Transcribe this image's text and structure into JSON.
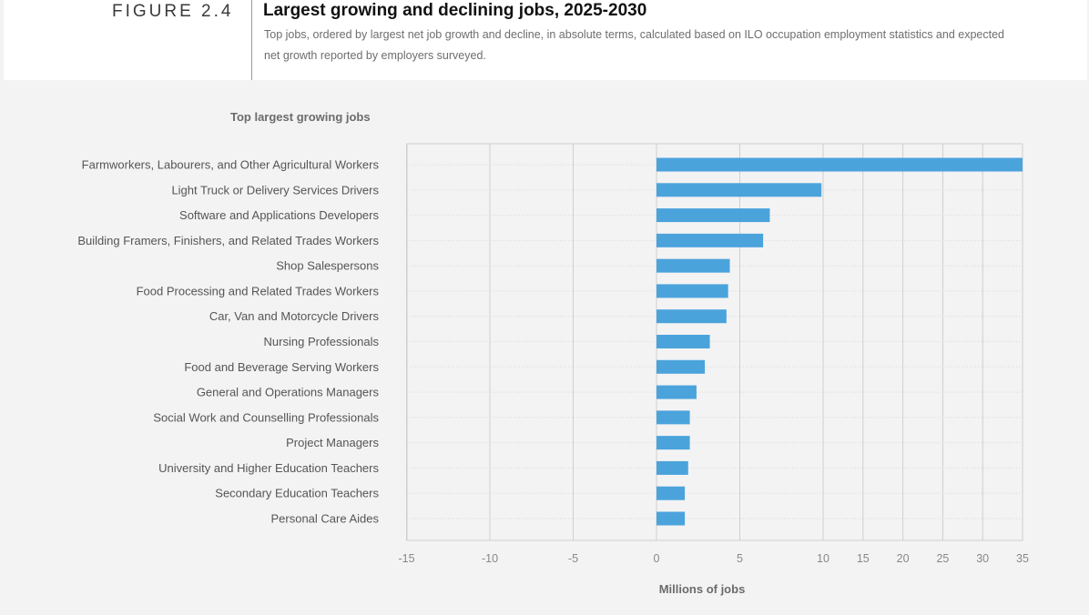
{
  "header": {
    "figure_label": "FIGURE 2.4",
    "title": "Largest growing and declining jobs, 2025-2030",
    "subtitle": "Top jobs, ordered by largest net job growth and decline, in absolute terms, calculated based on ILO occupation employment statistics and expected net growth  reported by employers surveyed."
  },
  "colors": {
    "bar": "#4ba3dc",
    "grid": "#cfcfcf",
    "plot_bg": "#f3f3f3"
  },
  "chart_data": {
    "type": "bar",
    "orientation": "horizontal",
    "section_title": "Top largest growing jobs",
    "xlabel": "Millions of jobs",
    "xlim": [
      -15,
      35
    ],
    "x_ticks": [
      "-15",
      "-10",
      "-5",
      "0",
      "5",
      "10",
      "15",
      "20",
      "25",
      "30",
      "35"
    ],
    "x_scale": "piecewise: linear -15 to 10, compressed 10 to 35",
    "grid": "vertical",
    "categories": [
      "Farmworkers, Labourers, and Other Agricultural Workers",
      "Light Truck or Delivery Services Drivers",
      "Software and Applications Developers",
      "Building Framers, Finishers, and Related Trades Workers",
      "Shop Salespersons",
      "Food Processing and Related Trades Workers",
      "Car, Van and Motorcycle Drivers",
      "Nursing Professionals",
      "Food and Beverage Serving Workers",
      "General and Operations Managers",
      "Social Work and Counselling Professionals",
      "Project Managers",
      "University and Higher Education Teachers",
      "Secondary Education Teachers",
      "Personal Care Aides"
    ],
    "values": [
      35,
      9.9,
      6.8,
      6.4,
      4.4,
      4.3,
      4.2,
      3.2,
      2.9,
      2.4,
      2.0,
      2.0,
      1.9,
      1.7,
      1.7
    ]
  }
}
